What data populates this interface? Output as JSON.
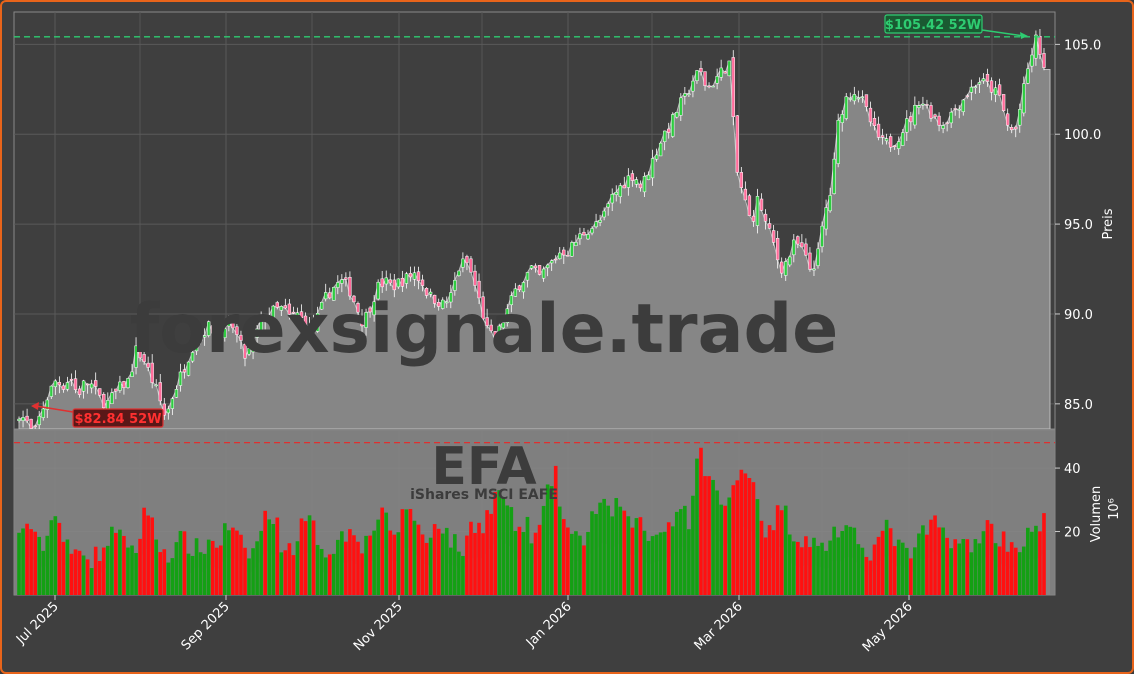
{
  "chart_data": {
    "type": "candlestick",
    "watermark": "forexsignale.trade",
    "ticker": "EFA",
    "ticker_subtitle": "iShares MSCI EAFE",
    "price_axis": {
      "label": "Preis",
      "ticks": [
        85.0,
        90.0,
        95.0,
        100.0,
        105.0
      ],
      "tick_labels": [
        "85.0",
        "90.0",
        "95.0",
        "100.0",
        "105.0"
      ],
      "range": [
        83.6,
        106.8
      ]
    },
    "volume_axis": {
      "label": "Volumen",
      "unit": "10⁶",
      "ticks": [
        20,
        40
      ],
      "tick_labels": [
        "20",
        "40"
      ],
      "range": [
        0,
        52
      ]
    },
    "x_axis": {
      "tick_labels": [
        "Jul 2025",
        "Sep 2025",
        "Nov 2025",
        "Jan 2026",
        "Mar 2026",
        "May 2026"
      ]
    },
    "annotations": {
      "high": {
        "value": 105.42,
        "label": "$105.42 52W",
        "color": "#2ecc71"
      },
      "low": {
        "value": 82.84,
        "label": "$82.84 52W",
        "color": "#e03030"
      }
    },
    "last_close": 103.6,
    "close_path": [
      84.5,
      84.0,
      83.2,
      84.5,
      85.5,
      86.3,
      86.0,
      86.5,
      85.5,
      86.2,
      86.0,
      85.3,
      85.0,
      85.5,
      86.0,
      86.3,
      88.0,
      87.5,
      86.5,
      85.5,
      84.2,
      85.5,
      86.5,
      87.5,
      88.5,
      89.0,
      89.3,
      89.0,
      88.8,
      89.5,
      88.5,
      87.5,
      88.5,
      89.5,
      90.0,
      90.2,
      90.3,
      89.8,
      90.0,
      89.5,
      89.0,
      90.0,
      91.0,
      91.5,
      91.8,
      91.5,
      90.5,
      89.5,
      90.5,
      91.5,
      91.8,
      91.5,
      91.8,
      92.0,
      92.3,
      91.8,
      91.0,
      90.8,
      90.5,
      91.0,
      92.5,
      93.0,
      92.0,
      90.5,
      89.0,
      88.5,
      89.5,
      90.5,
      91.5,
      92.0,
      92.5,
      92.0,
      92.5,
      93.0,
      93.5,
      93.5,
      94.0,
      94.5,
      94.8,
      95.0,
      95.5,
      96.5,
      97.0,
      97.5,
      97.8,
      97.0,
      98.0,
      99.0,
      100.0,
      100.5,
      101.5,
      102.0,
      103.0,
      103.5,
      102.5,
      103.0,
      103.5,
      104.0,
      98.0,
      96.5,
      95.0,
      96.5,
      95.0,
      94.0,
      92.5,
      93.0,
      94.0,
      93.5,
      92.5,
      93.0,
      95.5,
      97.0,
      101.0,
      102.0,
      102.5,
      102.0,
      101.0,
      100.0,
      99.5,
      99.5,
      99.8,
      100.5,
      101.0,
      102.0,
      101.5,
      101.0,
      100.5,
      101.0,
      101.5,
      102.0,
      102.5,
      103.0,
      102.8,
      102.5,
      102.0,
      100.5,
      100.0,
      102.0,
      104.0,
      105.4,
      103.6
    ],
    "volume_path": [
      18,
      24,
      15,
      17,
      28,
      16,
      12,
      16,
      11,
      14,
      17,
      24,
      12,
      14,
      30,
      18,
      14,
      13,
      18,
      15,
      14,
      17,
      16,
      22,
      18,
      13,
      14,
      24,
      26,
      16,
      14,
      21,
      23,
      18,
      13,
      17,
      19,
      22,
      15,
      21,
      28,
      17,
      23,
      29,
      22,
      15,
      25,
      20,
      16,
      14,
      23,
      22,
      27,
      34,
      26,
      20,
      22,
      17,
      28,
      40,
      24,
      18,
      16,
      24,
      29,
      25,
      30,
      21,
      26,
      19,
      18,
      23,
      22,
      30,
      22,
      46,
      38,
      31,
      27,
      35,
      42,
      36,
      23,
      18,
      30,
      22,
      17,
      19,
      14,
      16,
      21,
      19,
      18,
      16,
      14,
      18,
      22,
      15,
      12,
      16,
      20,
      23,
      19,
      18,
      16,
      14,
      20,
      22,
      18,
      17,
      15,
      18,
      20,
      23
    ]
  }
}
